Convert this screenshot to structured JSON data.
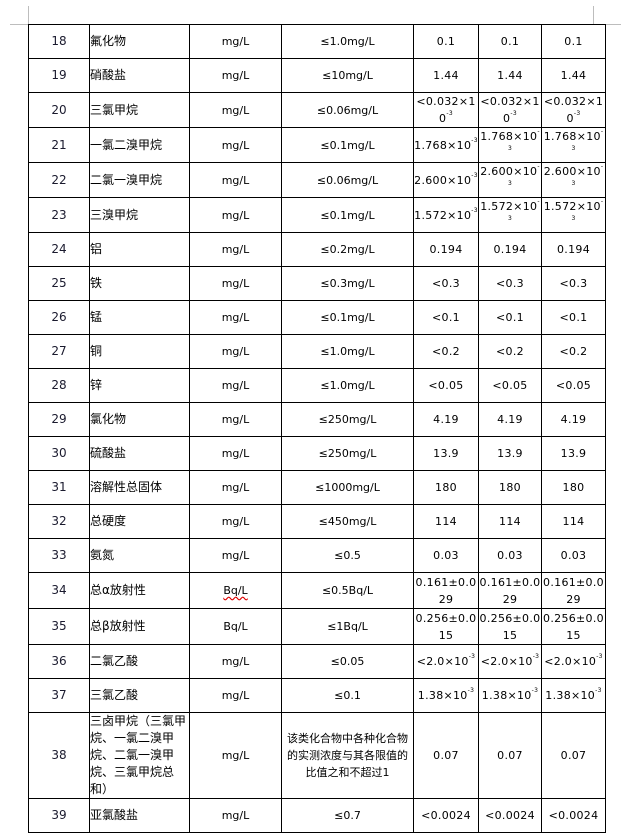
{
  "table": {
    "rows": [
      {
        "no": "18",
        "name": "氟化物",
        "unit": "mg/L",
        "limit": "≤1.0mg/L",
        "values": [
          {
            "text": "0.1"
          },
          {
            "text": "0.1"
          },
          {
            "text": "0.1"
          }
        ]
      },
      {
        "no": "19",
        "name": "硝酸盐",
        "unit": "mg/L",
        "limit": "≤10mg/L",
        "values": [
          {
            "text": "1.44"
          },
          {
            "text": "1.44"
          },
          {
            "text": "1.44"
          }
        ]
      },
      {
        "no": "20",
        "name": "三氯甲烷",
        "unit": "mg/L",
        "limit": "≤0.06mg/L",
        "values": [
          {
            "text": "<0.032×10",
            "exp": "-3"
          },
          {
            "text": "<0.032×10",
            "exp": "-3"
          },
          {
            "text": "<0.032×10",
            "exp": "-3"
          }
        ]
      },
      {
        "no": "21",
        "name": "一氯二溴甲烷",
        "unit": "mg/L",
        "limit": "≤0.1mg/L",
        "values": [
          {
            "text": "1.768×10",
            "exp": "-3"
          },
          {
            "text": "1.768×10",
            "exp": "-3"
          },
          {
            "text": "1.768×10",
            "exp": "-3"
          }
        ]
      },
      {
        "no": "22",
        "name": "二氯一溴甲烷",
        "unit": "mg/L",
        "limit": "≤0.06mg/L",
        "values": [
          {
            "text": "2.600×10",
            "exp": "-3"
          },
          {
            "text": "2.600×10",
            "exp": "-3"
          },
          {
            "text": "2.600×10",
            "exp": "-3"
          }
        ]
      },
      {
        "no": "23",
        "name": "三溴甲烷",
        "unit": "mg/L",
        "limit": "≤0.1mg/L",
        "values": [
          {
            "text": "1.572×10",
            "exp": "-3"
          },
          {
            "text": "1.572×10",
            "exp": "-3"
          },
          {
            "text": "1.572×10",
            "exp": "-3"
          }
        ]
      },
      {
        "no": "24",
        "name": "铝",
        "unit": "mg/L",
        "limit": "≤0.2mg/L",
        "values": [
          {
            "text": "0.194"
          },
          {
            "text": "0.194"
          },
          {
            "text": "0.194"
          }
        ]
      },
      {
        "no": "25",
        "name": "铁",
        "unit": "mg/L",
        "limit": "≤0.3mg/L",
        "values": [
          {
            "text": "<0.3"
          },
          {
            "text": "<0.3"
          },
          {
            "text": "<0.3"
          }
        ]
      },
      {
        "no": "26",
        "name": "锰",
        "unit": "mg/L",
        "limit": "≤0.1mg/L",
        "values": [
          {
            "text": "<0.1"
          },
          {
            "text": "<0.1"
          },
          {
            "text": "<0.1"
          }
        ]
      },
      {
        "no": "27",
        "name": "铜",
        "unit": "mg/L",
        "limit": "≤1.0mg/L",
        "values": [
          {
            "text": "<0.2"
          },
          {
            "text": "<0.2"
          },
          {
            "text": "<0.2"
          }
        ]
      },
      {
        "no": "28",
        "name": "锌",
        "unit": "mg/L",
        "limit": "≤1.0mg/L",
        "values": [
          {
            "text": "<0.05"
          },
          {
            "text": "<0.05"
          },
          {
            "text": "<0.05"
          }
        ]
      },
      {
        "no": "29",
        "name": "氯化物",
        "unit": "mg/L",
        "limit": "≤250mg/L",
        "values": [
          {
            "text": "4.19"
          },
          {
            "text": "4.19"
          },
          {
            "text": "4.19"
          }
        ]
      },
      {
        "no": "30",
        "name": "硫酸盐",
        "unit": "mg/L",
        "limit": "≤250mg/L",
        "values": [
          {
            "text": "13.9"
          },
          {
            "text": "13.9"
          },
          {
            "text": "13.9"
          }
        ]
      },
      {
        "no": "31",
        "name": "溶解性总固体",
        "unit": "mg/L",
        "limit": "≤1000mg/L",
        "values": [
          {
            "text": "180"
          },
          {
            "text": "180"
          },
          {
            "text": "180"
          }
        ]
      },
      {
        "no": "32",
        "name": "总硬度",
        "unit": "mg/L",
        "limit": "≤450mg/L",
        "values": [
          {
            "text": "114"
          },
          {
            "text": "114"
          },
          {
            "text": "114"
          }
        ]
      },
      {
        "no": "33",
        "name": "氨氮",
        "unit": "mg/L",
        "limit": "≤0.5",
        "values": [
          {
            "text": "0.03"
          },
          {
            "text": "0.03"
          },
          {
            "text": "0.03"
          }
        ]
      },
      {
        "no": "34",
        "name": "总α放射性",
        "unit": "Bq/L",
        "unit_spellcheck": true,
        "limit": "≤0.5Bq/L",
        "tall": true,
        "values": [
          {
            "text": "0.161±0.029"
          },
          {
            "text": "0.161±0.029"
          },
          {
            "text": "0.161±0.029"
          }
        ]
      },
      {
        "no": "35",
        "name": "总β放射性",
        "unit": "Bq/L",
        "limit": "≤1Bq/L",
        "tall": true,
        "values": [
          {
            "text": "0.256±0.015"
          },
          {
            "text": "0.256±0.015"
          },
          {
            "text": "0.256±0.015"
          }
        ]
      },
      {
        "no": "36",
        "name": "二氯乙酸",
        "unit": "mg/L",
        "limit": "≤0.05",
        "values": [
          {
            "text": "<2.0×10",
            "exp": "-3"
          },
          {
            "text": "<2.0×10",
            "exp": "-3"
          },
          {
            "text": "<2.0×10",
            "exp": "-3"
          }
        ]
      },
      {
        "no": "37",
        "name": "三氯乙酸",
        "unit": "mg/L",
        "limit": "≤0.1",
        "values": [
          {
            "text": "1.38×10",
            "exp": "-3"
          },
          {
            "text": "1.38×10",
            "exp": "-3"
          },
          {
            "text": "1.38×10",
            "exp": "-3"
          }
        ]
      },
      {
        "no": "38",
        "name": "三卤甲烷（三氯甲烷、一氯二溴甲烷、二氯一溴甲烷、三氯甲烷总和）",
        "unit": "mg/L",
        "limit": "该类化合物中各种化合物的实测浓度与其各限值的比值之和不超过1",
        "xtall": true,
        "values": [
          {
            "text": "0.07"
          },
          {
            "text": "0.07"
          },
          {
            "text": "0.07"
          }
        ]
      },
      {
        "no": "39",
        "name": "亚氯酸盐",
        "unit": "mg/L",
        "limit": "≤0.7",
        "values": [
          {
            "text": "<0.0024"
          },
          {
            "text": "<0.0024"
          },
          {
            "text": "<0.0024"
          }
        ]
      }
    ]
  }
}
